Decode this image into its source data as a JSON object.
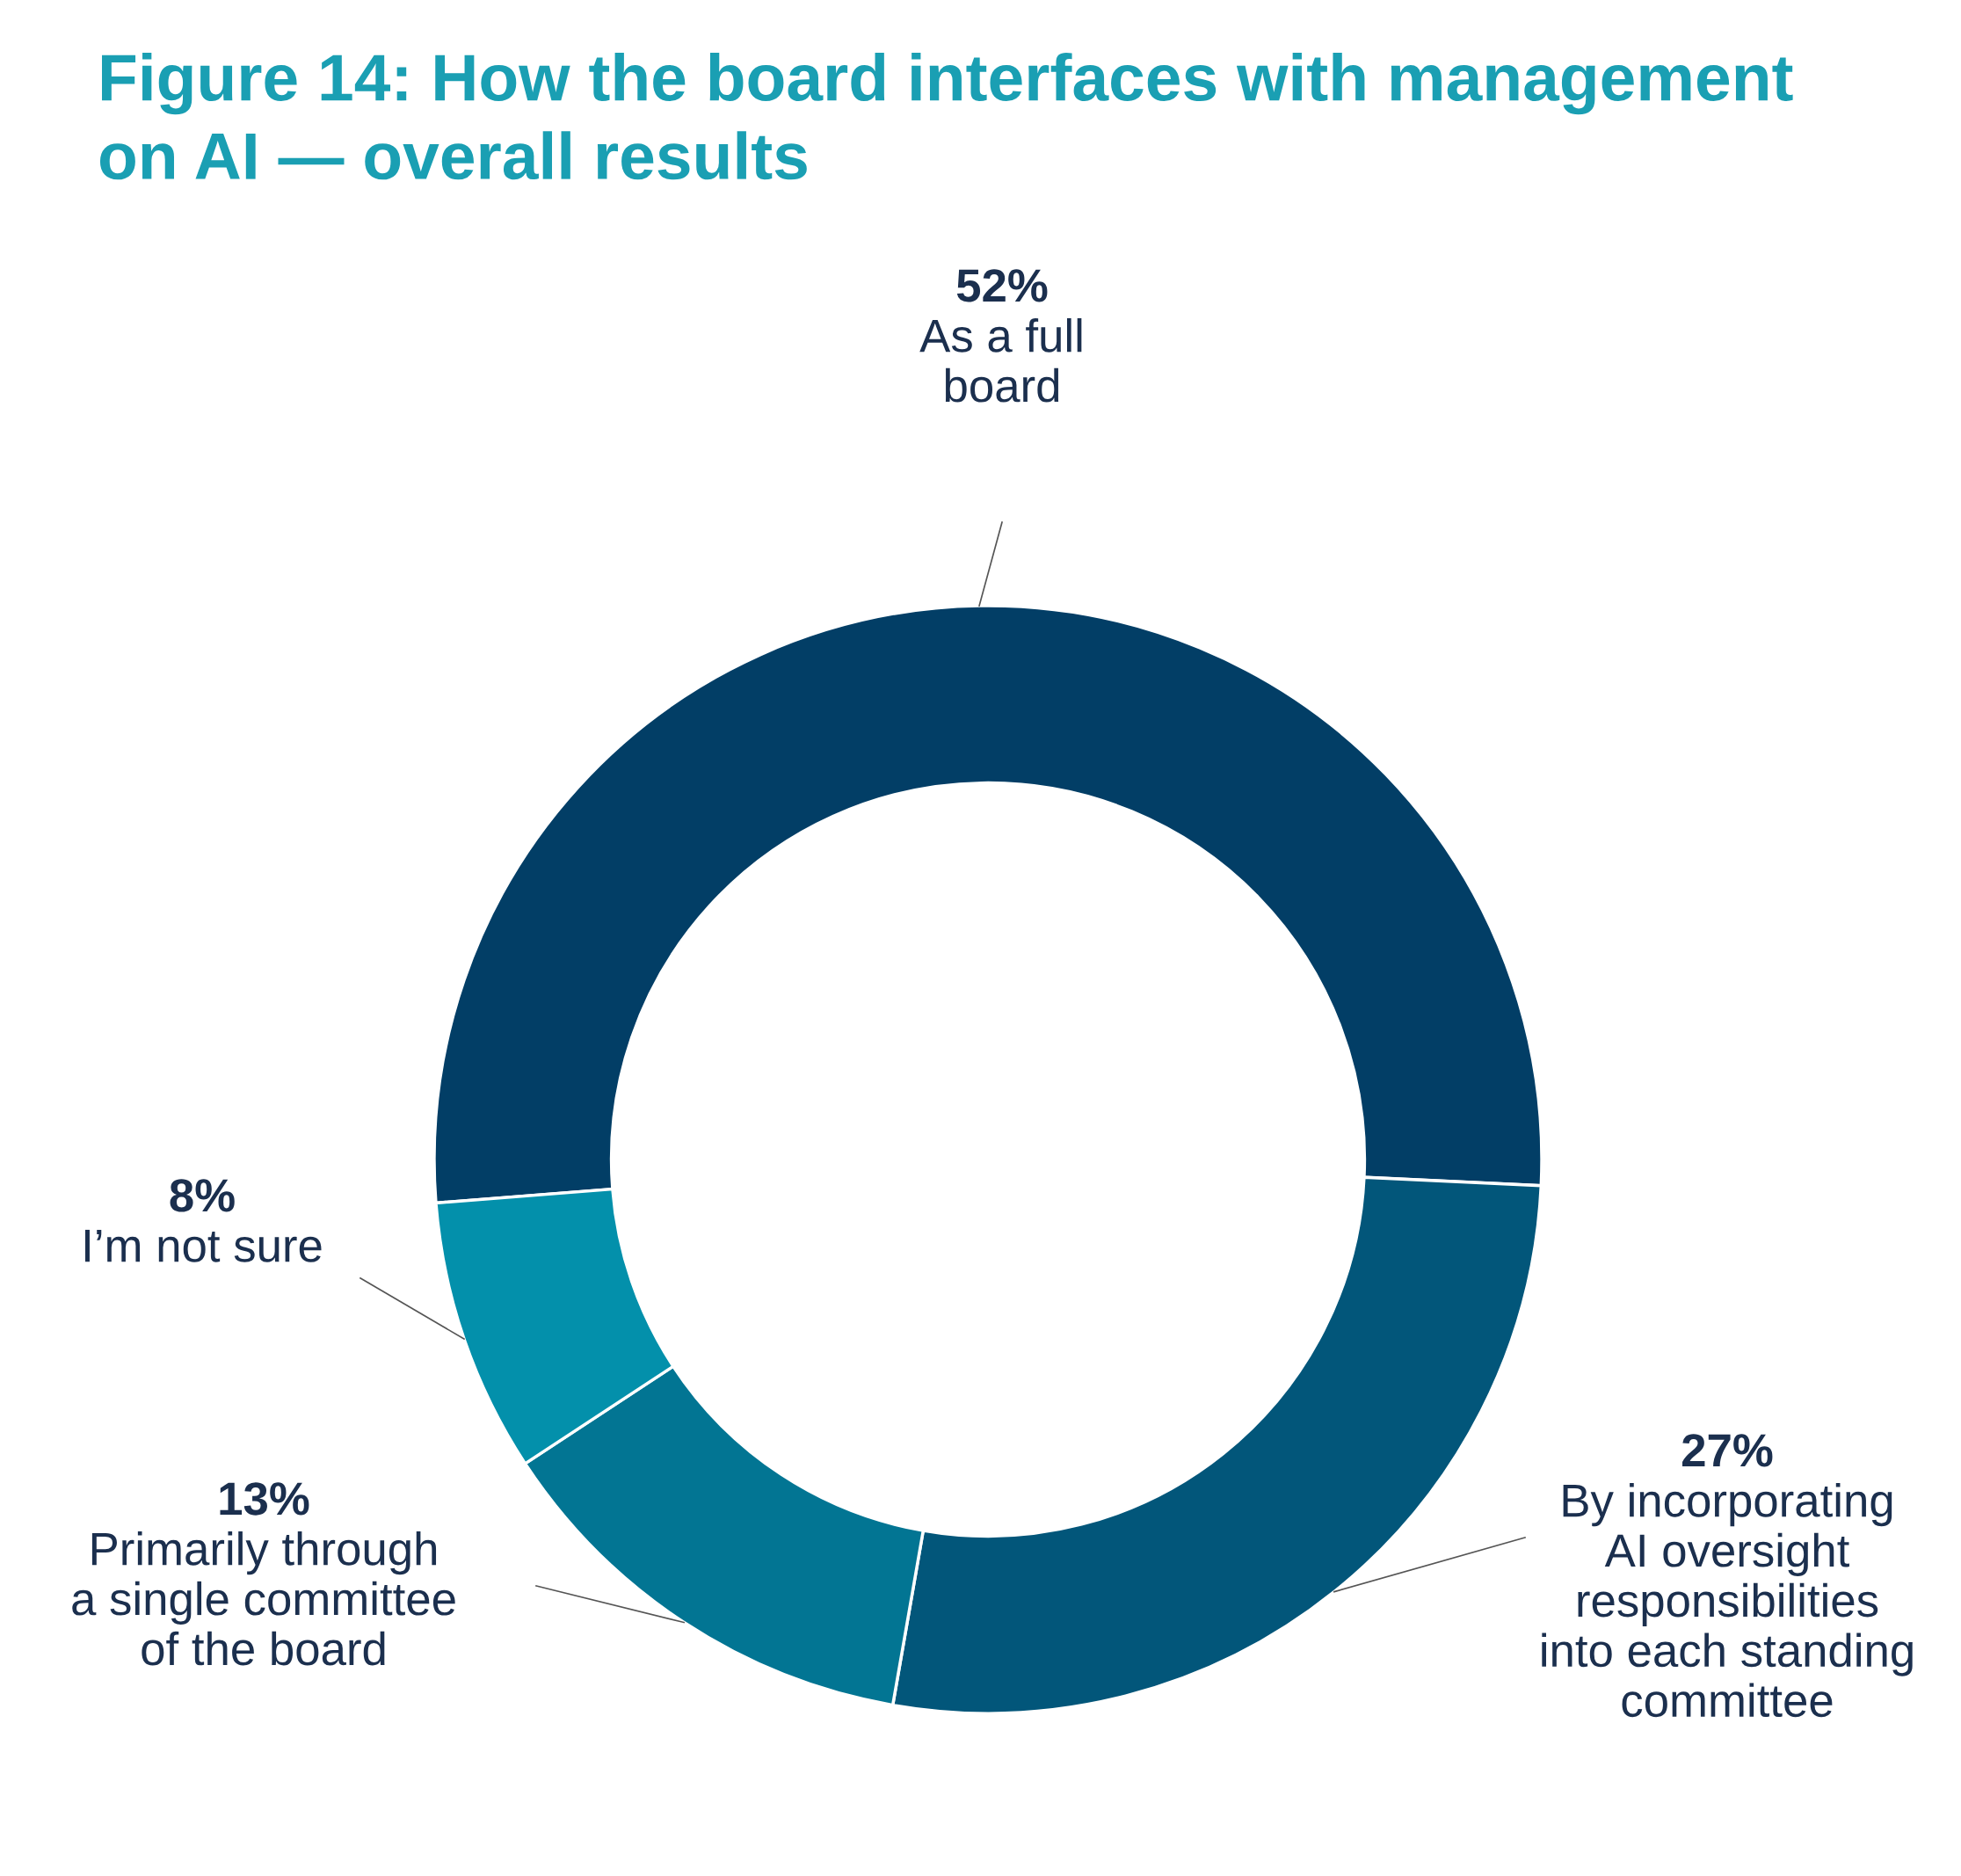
{
  "chart_data": {
    "type": "donut",
    "title": "Figure 14: How the board interfaces with management\non AI — overall results",
    "categories": [
      "As a full\nboard",
      "By incorporating\nAI oversight\nresponsibilities\ninto each standing\ncommittee",
      "Primarily through\na single committee\nof the board",
      "I’m not sure"
    ],
    "values": [
      52,
      27,
      13,
      8
    ],
    "colors": [
      "#023e66",
      "#02567a",
      "#027593",
      "#0390ab"
    ],
    "value_labels": [
      "52%",
      "27%",
      "13%",
      "8%"
    ]
  }
}
